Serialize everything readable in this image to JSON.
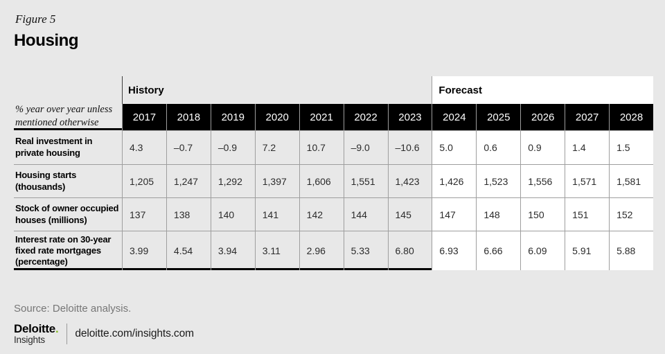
{
  "figure_label": "Figure 5",
  "title": "Housing",
  "chart_data": {
    "type": "table",
    "title": "Housing",
    "figure_label": "Figure 5",
    "unit_note": "% year over year unless\nmentioned otherwise",
    "groups": [
      {
        "label": "History",
        "years": [
          "2017",
          "2018",
          "2019",
          "2020",
          "2021",
          "2022",
          "2023"
        ]
      },
      {
        "label": "Forecast",
        "years": [
          "2024",
          "2025",
          "2026",
          "2027",
          "2028"
        ]
      }
    ],
    "rows": [
      {
        "label": "Real investment in\nprivate housing",
        "history": [
          "4.3",
          "–0.7",
          "–0.9",
          "7.2",
          "10.7",
          "–9.0",
          "–10.6"
        ],
        "forecast": [
          "5.0",
          "0.6",
          "0.9",
          "1.4",
          "1.5"
        ]
      },
      {
        "label": "Housing starts\n(thousands)",
        "history": [
          "1,205",
          "1,247",
          "1,292",
          "1,397",
          "1,606",
          "1,551",
          "1,423"
        ],
        "forecast": [
          "1,426",
          "1,523",
          "1,556",
          "1,571",
          "1,581"
        ]
      },
      {
        "label": "Stock of owner occupied\nhouses (millions)",
        "history": [
          "137",
          "138",
          "140",
          "141",
          "142",
          "144",
          "145"
        ],
        "forecast": [
          "147",
          "148",
          "150",
          "151",
          "152"
        ]
      },
      {
        "label": "Interest rate on 30-year\nfixed rate mortgages\n(percentage)",
        "history": [
          "3.99",
          "4.54",
          "3.94",
          "3.11",
          "2.96",
          "5.33",
          "6.80"
        ],
        "forecast": [
          "6.93",
          "6.66",
          "6.09",
          "5.91",
          "5.88"
        ]
      }
    ],
    "layout": {
      "history_background": "#e8e8e8",
      "forecast_background": "#ffffff",
      "year_header_background": "#000000",
      "grid_line_color": "#9e9e9e"
    }
  },
  "source": "Source: Deloitte analysis.",
  "footer": {
    "brand_name": "Deloitte",
    "brand_dot": ".",
    "brand_sub": "Insights",
    "link": "deloitte.com/insights.com"
  },
  "colors": {
    "page_background": "#e8e8e8",
    "accent_green": "#86BC25",
    "header_black": "#000000"
  }
}
